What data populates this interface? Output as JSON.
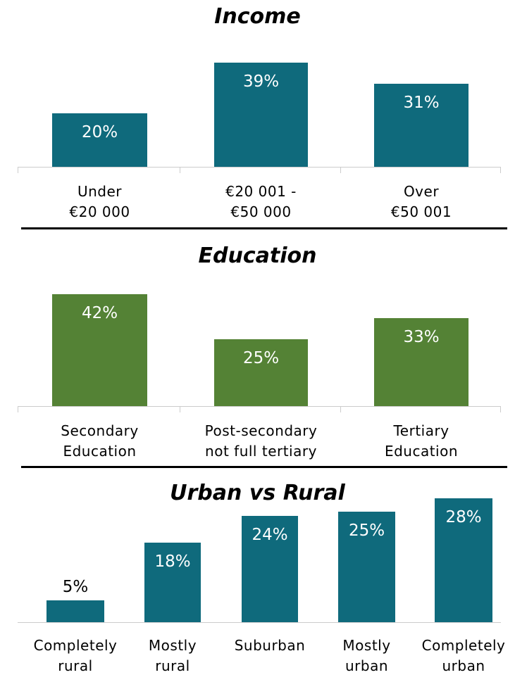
{
  "chart_data": [
    {
      "type": "bar",
      "title": "Income",
      "categories": [
        "Under\n€20 000",
        "€20 001 -\n€50 000",
        "Over\n€50 001"
      ],
      "values": [
        20,
        39,
        31
      ],
      "value_labels": [
        "20%",
        "39%",
        "31%"
      ],
      "color": "#0f6a7c"
    },
    {
      "type": "bar",
      "title": "Education",
      "categories": [
        "Secondary\nEducation",
        "Post-secondary\nnot full tertiary",
        "Tertiary\nEducation"
      ],
      "values": [
        42,
        25,
        33
      ],
      "value_labels": [
        "42%",
        "25%",
        "33%"
      ],
      "color": "#548235"
    },
    {
      "type": "bar",
      "title": "Urban vs Rural",
      "categories": [
        "Completely\nrural",
        "Mostly\nrural",
        "Suburban",
        "Mostly\nurban",
        "Completely\nurban"
      ],
      "values": [
        5,
        18,
        24,
        25,
        28
      ],
      "value_labels": [
        "5%",
        "18%",
        "24%",
        "25%",
        "28%"
      ],
      "color": "#0f6a7c"
    }
  ]
}
